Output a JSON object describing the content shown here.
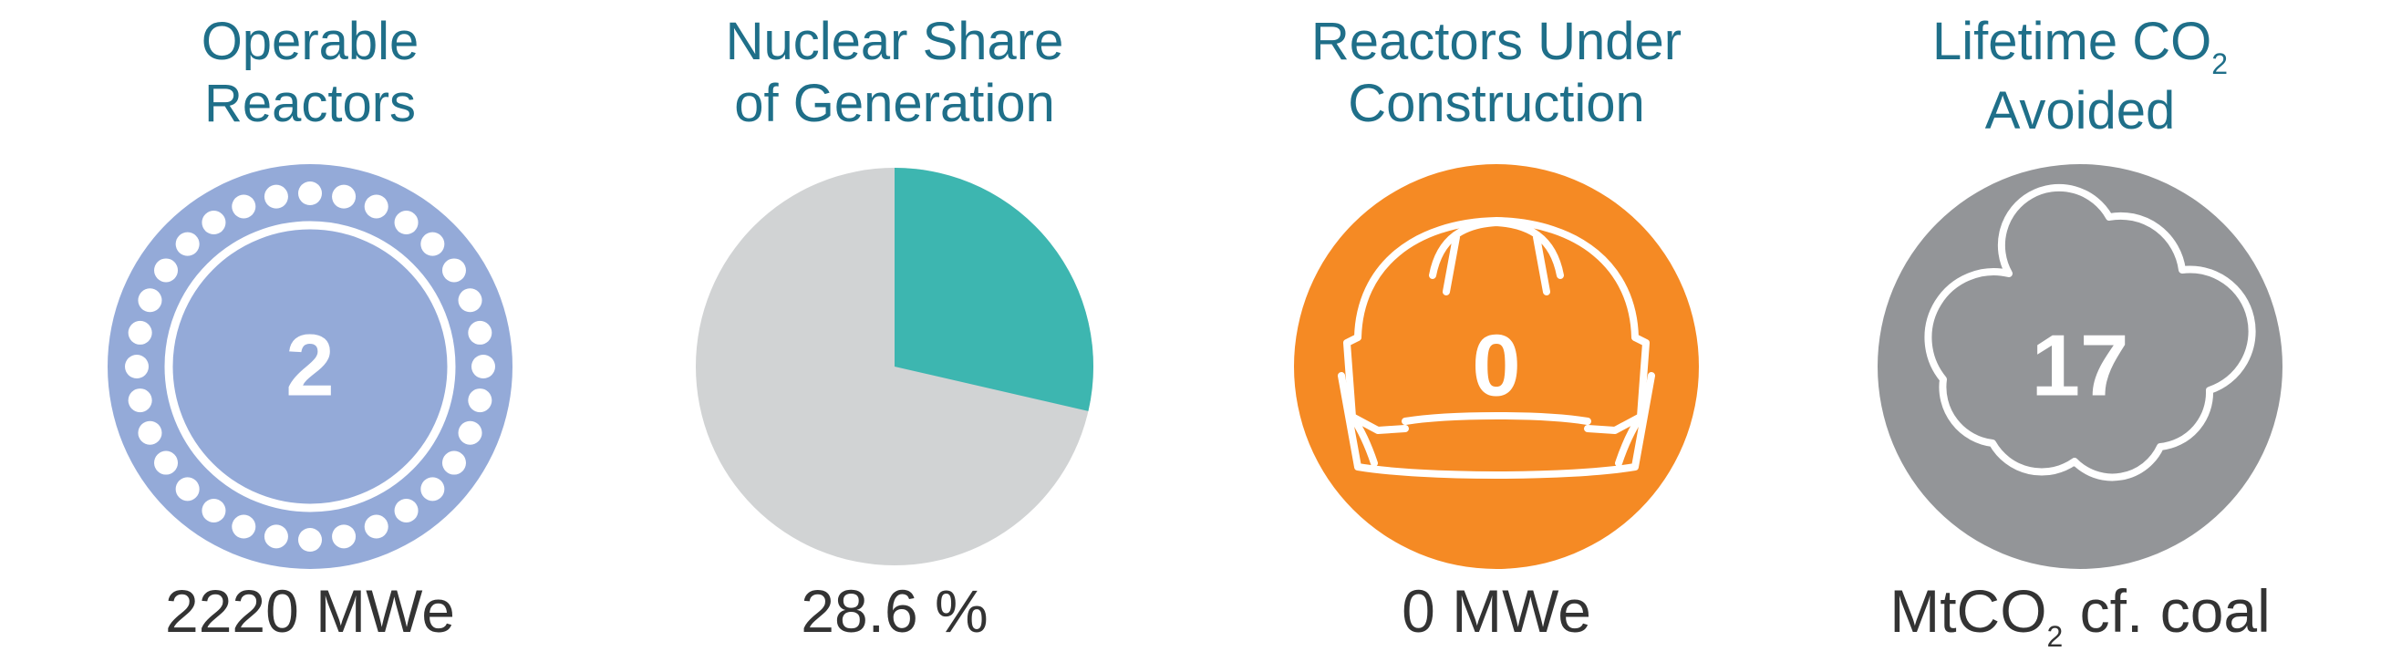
{
  "colors": {
    "title_text": "#1f6f89",
    "caption_text": "#333333",
    "reactors_fill": "#94aad8",
    "nuclear_share_fill": "#3db6b0",
    "other_share_fill": "#d1d3d4",
    "construction_fill": "#f58a24",
    "co2_fill": "#939598"
  },
  "operable": {
    "title_line1": "Operable",
    "title_line2": "Reactors",
    "value": "2",
    "caption": "2220 MWe",
    "icon": "reactor-ring-icon"
  },
  "share": {
    "title_line1": "Nuclear Share",
    "title_line2": "of Generation",
    "percent": 28.6,
    "caption": "28.6 %"
  },
  "construction": {
    "title_line1": "Reactors Under",
    "title_line2": "Construction",
    "value": "0",
    "caption": "0 MWe",
    "icon": "hard-hat-icon"
  },
  "co2": {
    "title_line1": "Lifetime CO",
    "title_sub": "2",
    "title_line2": "Avoided",
    "value": "17",
    "caption_pre": "MtCO",
    "caption_sub": "2",
    "caption_post": " cf. coal",
    "icon": "cloud-icon"
  }
}
